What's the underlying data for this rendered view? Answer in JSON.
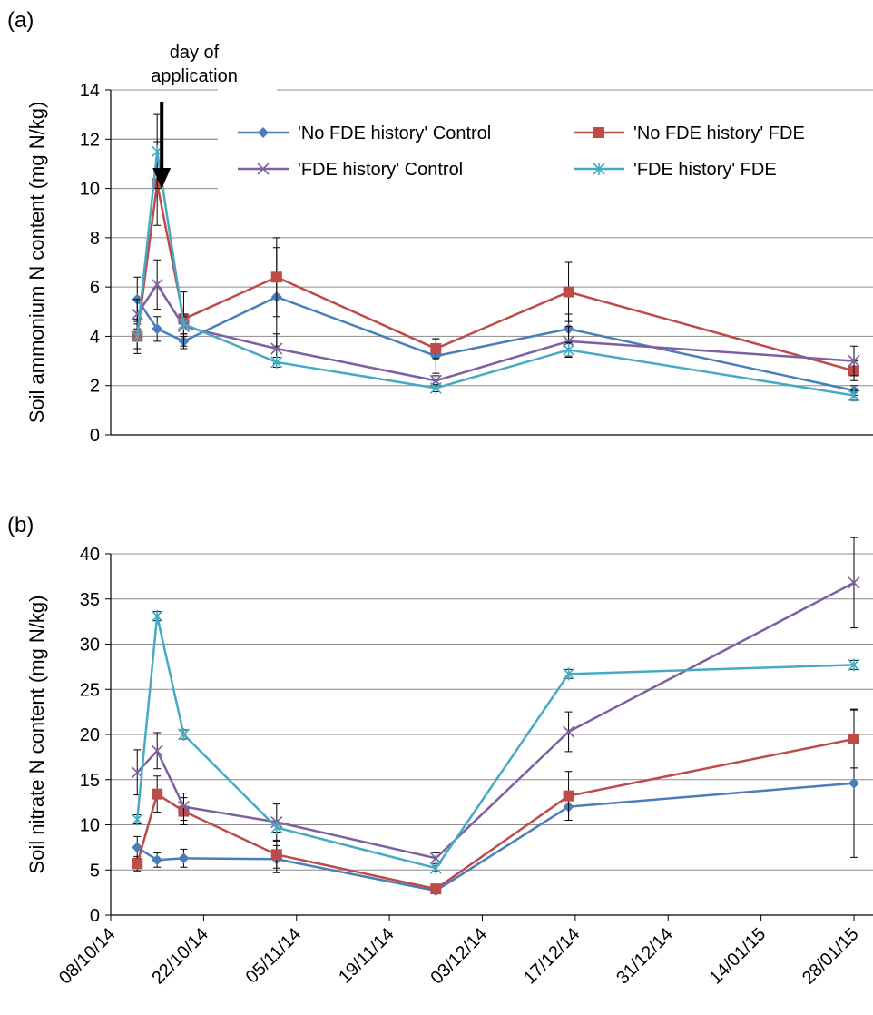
{
  "chart_data": [
    {
      "panel": "(a)",
      "type": "line",
      "ylabel": "Soil ammonium N content (mg N/kg)",
      "ylim": [
        0,
        14
      ],
      "yticks": [
        0,
        2,
        4,
        6,
        8,
        10,
        12,
        14
      ],
      "grid": true,
      "legend": "top-right",
      "annotation": "day of application",
      "annotation_date": "2014-10-15",
      "x_dates": [
        "2014-10-12",
        "2014-10-15",
        "2014-10-19",
        "2014-11-02",
        "2014-11-26",
        "2014-12-16",
        "2015-01-28"
      ],
      "series": [
        {
          "name": "'No FDE history' Control",
          "color": "#4a7ebb",
          "marker": "diamond",
          "values": [
            5.5,
            4.3,
            3.8,
            5.6,
            3.2,
            4.3,
            1.8
          ],
          "errors": [
            0.9,
            0.5,
            0.3,
            2.0,
            0.7,
            0.6,
            0.2
          ]
        },
        {
          "name": "'No FDE history' FDE",
          "color": "#be4b48",
          "marker": "square",
          "values": [
            4.0,
            10.2,
            4.7,
            6.4,
            3.5,
            5.8,
            2.6
          ],
          "errors": [
            0.7,
            1.7,
            1.1,
            1.6,
            0.4,
            1.2,
            0.4
          ]
        },
        {
          "name": "'FDE history' Control",
          "color": "#7d60a0",
          "marker": "x",
          "values": [
            4.9,
            6.1,
            4.4,
            3.5,
            2.2,
            3.8,
            3.0
          ],
          "errors": [
            0.6,
            1.0,
            0.4,
            0.6,
            0.2,
            0.6,
            0.6
          ]
        },
        {
          "name": "'FDE history' FDE",
          "color": "#46aac5",
          "marker": "star",
          "values": [
            4.0,
            11.5,
            4.5,
            2.95,
            1.9,
            3.45,
            1.6
          ],
          "errors": [
            0.5,
            1.5,
            0.4,
            0.2,
            0.15,
            0.3,
            0.2
          ]
        }
      ]
    },
    {
      "panel": "(b)",
      "type": "line",
      "ylabel": "Soil nitrate N content (mg N/kg)",
      "ylim": [
        0,
        40
      ],
      "yticks": [
        0,
        5,
        10,
        15,
        20,
        25,
        30,
        35,
        40
      ],
      "grid": true,
      "xtick_labels": [
        "08/10/14",
        "22/10/14",
        "05/11/14",
        "19/11/14",
        "03/12/14",
        "17/12/14",
        "31/12/14",
        "14/01/15",
        "28/01/15"
      ],
      "xtick_dates": [
        "2014-10-08",
        "2014-10-22",
        "2014-11-05",
        "2014-11-19",
        "2014-12-03",
        "2014-12-17",
        "2014-12-31",
        "2015-01-14",
        "2015-01-28"
      ],
      "x_dates": [
        "2014-10-12",
        "2014-10-15",
        "2014-10-19",
        "2014-11-02",
        "2014-11-26",
        "2014-12-16",
        "2015-01-28"
      ],
      "series": [
        {
          "name": "'No FDE history' Control",
          "color": "#4a7ebb",
          "marker": "diamond",
          "values": [
            7.5,
            6.1,
            6.3,
            6.2,
            2.7,
            12.0,
            14.6
          ],
          "errors": [
            1.2,
            0.8,
            1.0,
            1.5,
            0.3,
            1.5,
            8.2
          ]
        },
        {
          "name": "'No FDE history' FDE",
          "color": "#be4b48",
          "marker": "square",
          "values": [
            5.7,
            13.4,
            11.5,
            6.7,
            2.9,
            13.2,
            19.5
          ],
          "errors": [
            0.8,
            2.0,
            1.5,
            1.5,
            0.4,
            2.7,
            3.2
          ]
        },
        {
          "name": "'FDE history' Control",
          "color": "#7d60a0",
          "marker": "x",
          "values": [
            15.8,
            18.2,
            12.0,
            10.3,
            6.3,
            20.3,
            36.8
          ],
          "errors": [
            2.5,
            2.0,
            1.5,
            2.0,
            0.6,
            2.2,
            5.0
          ]
        },
        {
          "name": "'FDE history' FDE",
          "color": "#46aac5",
          "marker": "star",
          "values": [
            10.6,
            33.1,
            20.0,
            9.7,
            5.2,
            26.7,
            27.7
          ],
          "errors": [
            0.5,
            0.5,
            0.5,
            0.5,
            0.3,
            0.5,
            0.5
          ]
        }
      ]
    }
  ]
}
